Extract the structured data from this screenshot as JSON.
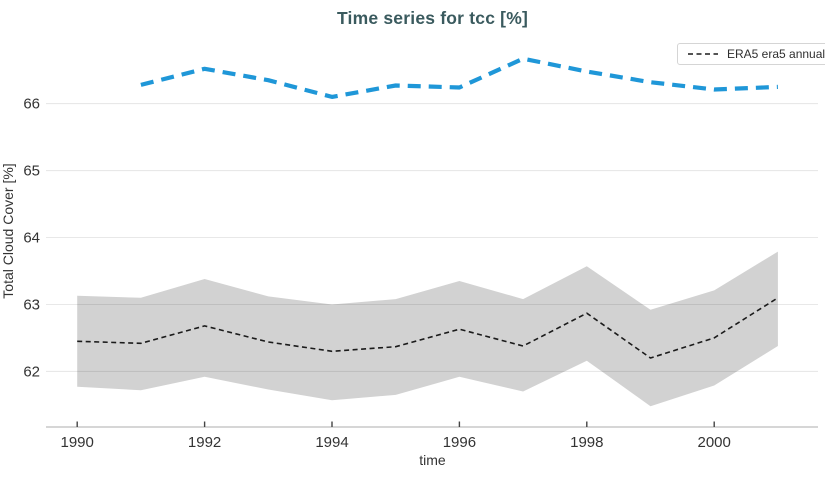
{
  "header": {
    "title": "Time series for tcc [%]"
  },
  "legend": {
    "items": [
      {
        "label": "ERA5 era5 annual",
        "line_style": "dashed",
        "color": "#1b1b1b"
      }
    ]
  },
  "colors": {
    "background": "#ffffff",
    "title_text": "#3a5a5e",
    "tick_text": "#333333",
    "gridline": "rgba(0,0,0,0.09)",
    "axis_line": "#c9c9c9",
    "tick_mark": "#444444",
    "band_fill": "#d2d2d2",
    "era5_line": "#1b1b1b",
    "blue_line": "#1f97d8",
    "legend_border": "#d5d5d5"
  },
  "chart_data": {
    "type": "line",
    "title": "Time series for tcc [%]",
    "xlabel": "time",
    "ylabel": "Total Cloud Cover [%]",
    "grid": true,
    "legend_position": "top-right",
    "x_tick_values": [
      1990,
      1992,
      1994,
      1996,
      1998,
      2000
    ],
    "x_tick_labels": [
      "1990",
      "1992",
      "1994",
      "1996",
      "1998",
      "2000"
    ],
    "y_tick_values": [
      62,
      63,
      64,
      65,
      66
    ],
    "y_tick_labels": [
      "62",
      "63",
      "64",
      "65",
      "66"
    ],
    "x_range": [
      1989.51,
      2001.63
    ],
    "y_range": [
      61.17,
      66.95
    ],
    "series": [
      {
        "name": "tcc-uncertainty-band",
        "kind": "band",
        "color": "#d2d2d2",
        "x": [
          1990,
          1991,
          1992,
          1993,
          1994,
          1995,
          1996,
          1997,
          1998,
          1999,
          2000,
          2001
        ],
        "y_upper": [
          63.13,
          63.1,
          63.38,
          63.12,
          63.0,
          63.08,
          63.35,
          63.08,
          63.57,
          62.92,
          63.21,
          63.79
        ],
        "y_lower": [
          61.77,
          61.72,
          61.92,
          61.73,
          61.57,
          61.65,
          61.92,
          61.7,
          62.16,
          61.48,
          61.79,
          62.38
        ]
      },
      {
        "name": "ERA5 era5 annual",
        "kind": "line",
        "style": "dashed",
        "color": "#1b1b1b",
        "width": 1.6,
        "dash": "5 3.5",
        "x": [
          1990,
          1991,
          1992,
          1993,
          1994,
          1995,
          1996,
          1997,
          1998,
          1999,
          2000,
          2001
        ],
        "y": [
          62.45,
          62.42,
          62.68,
          62.44,
          62.3,
          62.37,
          62.63,
          62.38,
          62.87,
          62.2,
          62.5,
          63.1
        ]
      },
      {
        "name": "tcc-annual",
        "kind": "line",
        "style": "dashed",
        "color": "#1f97d8",
        "width": 4.2,
        "dash": "13 8",
        "x": [
          1991,
          1992,
          1993,
          1994,
          1995,
          1996,
          1997,
          1998,
          1999,
          2000,
          2001
        ],
        "y": [
          66.28,
          66.52,
          66.35,
          66.1,
          66.27,
          66.24,
          66.67,
          66.48,
          66.32,
          66.21,
          66.25
        ]
      }
    ]
  }
}
